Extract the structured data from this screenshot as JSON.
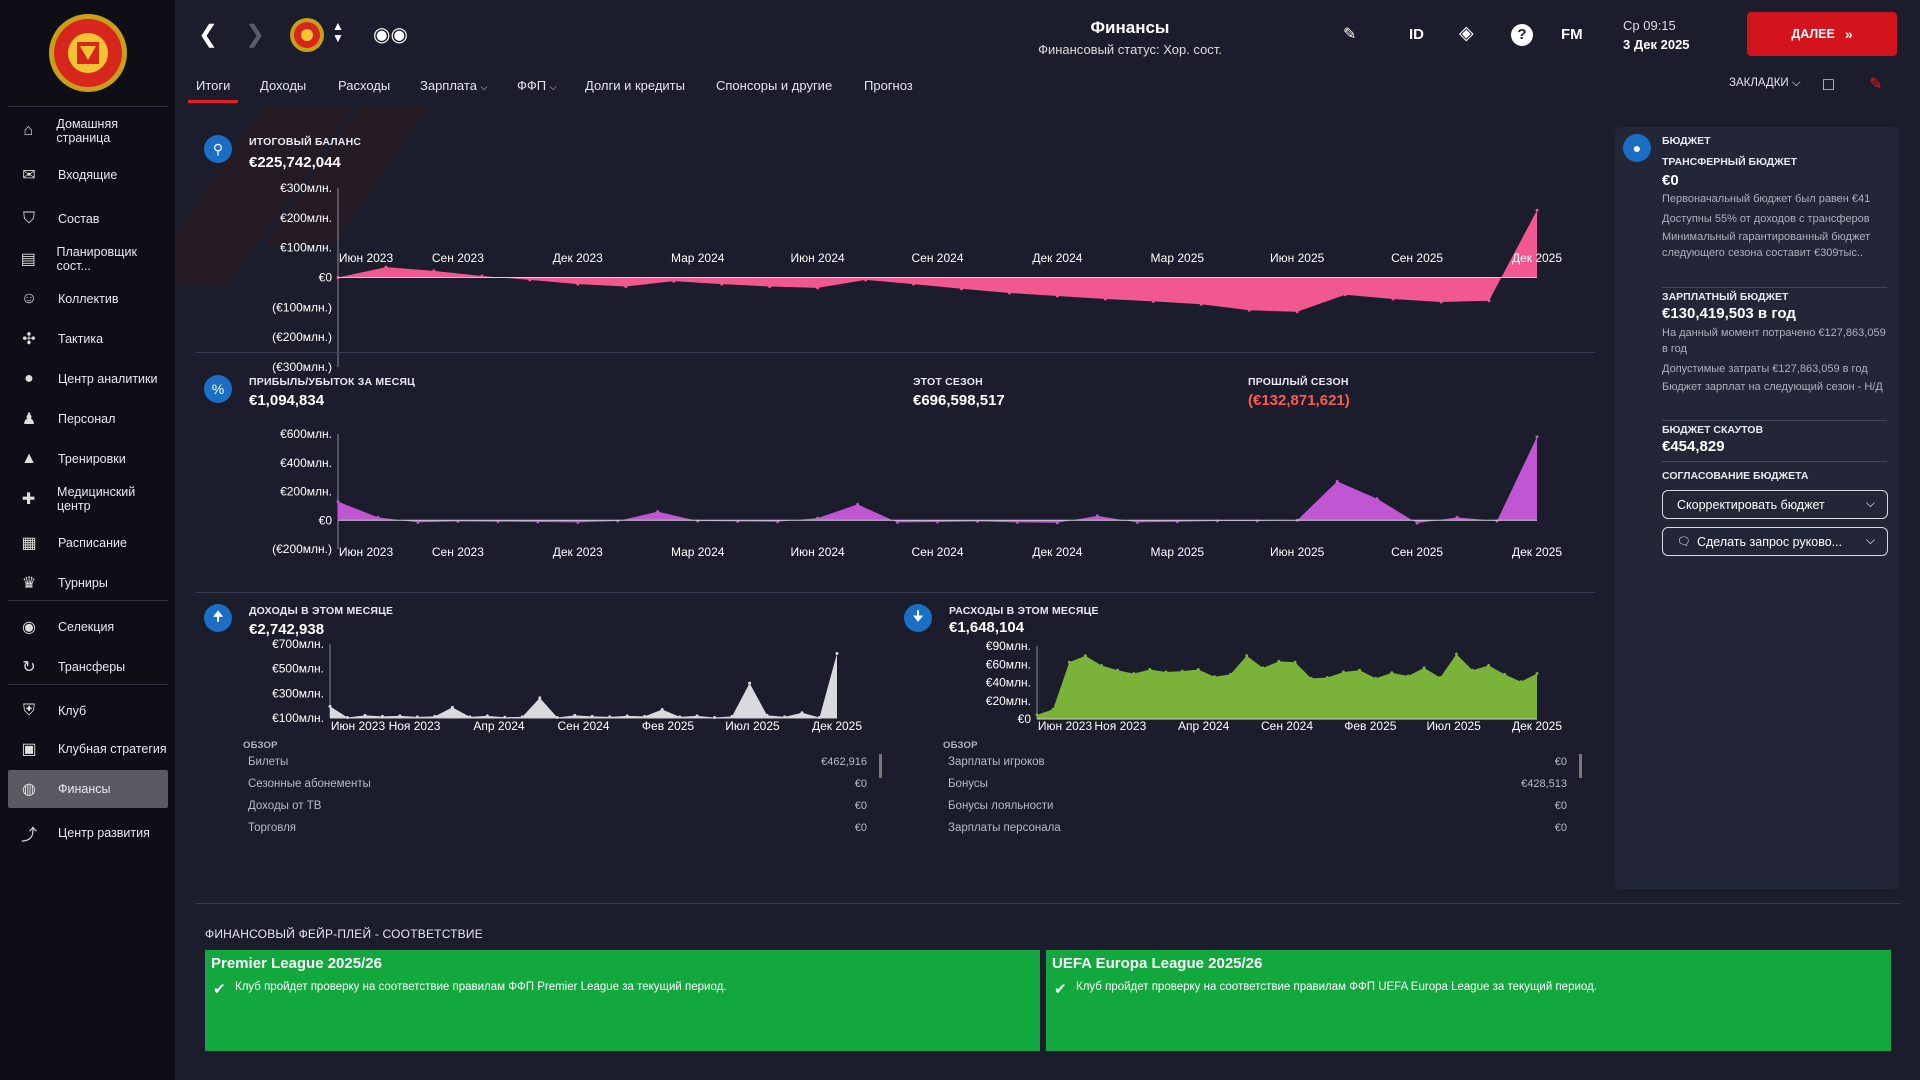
{
  "nav": {
    "items": [
      {
        "label": "Домашняя страница",
        "icon": "home-icon"
      },
      {
        "label": "Входящие",
        "icon": "mail-icon"
      },
      {
        "label": "Состав",
        "icon": "shirt-icon"
      },
      {
        "label": "Планировщик сост...",
        "icon": "planner-icon"
      },
      {
        "label": "Коллектив",
        "icon": "group-icon"
      },
      {
        "label": "Тактика",
        "icon": "tactics-icon"
      },
      {
        "label": "Центр аналитики",
        "icon": "analytics-icon"
      },
      {
        "label": "Персонал",
        "icon": "staff-icon"
      },
      {
        "label": "Тренировки",
        "icon": "training-cone-icon"
      },
      {
        "label": "Медицинский центр",
        "icon": "medical-icon"
      },
      {
        "label": "Расписание",
        "icon": "calendar-icon"
      },
      {
        "label": "Турниры",
        "icon": "trophy-icon"
      },
      {
        "label": "Селекция",
        "icon": "binoculars-icon"
      },
      {
        "label": "Трансферы",
        "icon": "transfer-icon"
      },
      {
        "label": "Клуб",
        "icon": "club-shield-icon"
      },
      {
        "label": "Клубная стратегия",
        "icon": "strategy-icon"
      },
      {
        "label": "Финансы",
        "icon": "finances-icon"
      },
      {
        "label": "Центр развития",
        "icon": "development-icon"
      }
    ]
  },
  "header": {
    "title": "Финансы",
    "subtitle": "Финансовый статус: Хор. сост.",
    "id_label": "ID",
    "fm_label": "FM",
    "time": "Ср 09:15",
    "date": "3 Дек 2025",
    "continue_label": "ДАЛЕЕ",
    "bookmarks_label": "ЗАКЛАДКИ"
  },
  "tabs": [
    "Итоги",
    "Доходы",
    "Расходы",
    "Зарплата",
    "ФФП",
    "Долги и кредиты",
    "Спонсоры и другие",
    "Прогноз"
  ],
  "balance": {
    "label": "ИТОГОВЫЙ БАЛАНС",
    "value": "€225,742,044"
  },
  "pnl": {
    "label": "ПРИБЫЛЬ/УБЫТОК ЗА МЕСЯЦ",
    "value": "€1,094,834",
    "this_season_label": "ЭТОТ СЕЗОН",
    "this_season_value": "€696,598,517",
    "last_season_label": "ПРОШЛЫЙ СЕЗОН",
    "last_season_value": "(€132,871,621)"
  },
  "income_month": {
    "label": "ДОХОДЫ В ЭТОМ МЕСЯЦЕ",
    "value": "€2,742,938"
  },
  "expense_month": {
    "label": "РАСХОДЫ В ЭТОМ МЕСЯЦЕ",
    "value": "€1,648,104"
  },
  "overview_income": {
    "title": "ОБЗОР",
    "rows": [
      {
        "label": "Билеты",
        "value": "€462,916"
      },
      {
        "label": "Сезонные абонементы",
        "value": "€0"
      },
      {
        "label": "Доходы от ТВ",
        "value": "€0"
      },
      {
        "label": "Торговля",
        "value": "€0"
      }
    ]
  },
  "overview_expense": {
    "title": "ОБЗОР",
    "rows": [
      {
        "label": "Зарплаты игроков",
        "value": "€0"
      },
      {
        "label": "Бонусы",
        "value": "€428,513"
      },
      {
        "label": "Бонусы лояльности",
        "value": "€0"
      },
      {
        "label": "Зарплаты персонала",
        "value": "€0"
      }
    ]
  },
  "budget": {
    "title": "БЮДЖЕТ",
    "transfer_label": "ТРАНСФЕРНЫЙ БЮДЖЕТ",
    "transfer_value": "€0",
    "transfer_note1": "Первоначальный бюджет был равен €41",
    "transfer_note2": "Доступны 55% от доходов с трансферов",
    "transfer_note3": "Минимальный гарантированный бюджет следующего сезона составит €309тыс..",
    "wage_label": "ЗАРПЛАТНЫЙ БЮДЖЕТ",
    "wage_value": "€130,419,503 в год",
    "wage_note1": "На данный момент потрачено €127,863,059 в год",
    "wage_note2": "Допустимые затраты €127,863,059 в год",
    "wage_note3": "Бюджет зарплат на следующий сезон - Н/Д",
    "scout_label": "БЮДЖЕТ СКАУТОВ",
    "scout_value": "€454,829",
    "agree_label": "СОГЛАСОВАНИЕ БЮДЖЕТА",
    "btn_adjust": "Скорректировать бюджет",
    "btn_request": "Сделать запрос руково..."
  },
  "ffp": {
    "title": "ФИНАНСОВЫЙ ФЕЙР-ПЛЕЙ - СООТВЕТСТВИЕ",
    "cards": [
      {
        "title": "Premier League 2025/26",
        "text": "Клуб пройдет проверку на соответствие правилам ФФП Premier League за текущий период."
      },
      {
        "title": "UEFA Europa League 2025/26",
        "text": "Клуб пройдет проверку на соответствие правилам ФФП UEFA Europa League за текущий период."
      }
    ]
  },
  "colors": {
    "balance": "#f0588f",
    "pnl": "#c156d3",
    "income": "#d9d9de",
    "expense": "#7ab23a",
    "continue": "#d4141c",
    "ffp": "#12a83e",
    "negative": "#ff5a50"
  },
  "chart_data": [
    {
      "type": "area",
      "name": "balance",
      "x_ticks": [
        "Июн 2023",
        "Сен 2023",
        "Дек 2023",
        "Мар 2024",
        "Июн 2024",
        "Сен 2024",
        "Дек 2024",
        "Мар 2025",
        "Июн 2025",
        "Сен 2025",
        "Дек 2025"
      ],
      "y_ticks": [
        "€300млн.",
        "€200млн.",
        "€100млн.",
        "€0",
        "(€100млн.)",
        "(€200млн.)",
        "(€300млн.)"
      ],
      "ylim": [
        -300,
        300
      ],
      "values": [
        0,
        35,
        22,
        5,
        -8,
        -22,
        -30,
        -12,
        -22,
        -30,
        -35,
        -8,
        -22,
        -38,
        -52,
        -62,
        -72,
        -80,
        -90,
        -110,
        -115,
        -58,
        -72,
        -82,
        -78,
        225.7
      ]
    },
    {
      "type": "area",
      "name": "pnl",
      "x_ticks": [
        "Июн 2023",
        "Сен 2023",
        "Дек 2023",
        "Мар 2024",
        "Июн 2024",
        "Сен 2024",
        "Дек 2024",
        "Мар 2025",
        "Июн 2025",
        "Сен 2025",
        "Дек 2025"
      ],
      "y_ticks": [
        "€600млн.",
        "€400млн.",
        "€200млн.",
        "€0",
        "(€200млн.)"
      ],
      "ylim": [
        -200,
        600
      ],
      "values": [
        130,
        20,
        -15,
        -8,
        -10,
        -12,
        -15,
        -5,
        60,
        -5,
        -8,
        -10,
        15,
        110,
        -15,
        -12,
        -8,
        -15,
        -18,
        30,
        -15,
        -10,
        -5,
        -5,
        0,
        270,
        150,
        -20,
        20,
        -5,
        580
      ]
    },
    {
      "type": "area",
      "name": "income",
      "x_ticks": [
        "Июн 2023",
        "Ноя 2023",
        "Апр 2024",
        "Сен 2024",
        "Фев 2025",
        "Июл 2025",
        "Дек 2025"
      ],
      "y_ticks": [
        "€700млн.",
        "€500млн.",
        "€300млн.",
        "€100млн."
      ],
      "ylim": [
        0,
        700
      ],
      "values": [
        110,
        5,
        25,
        15,
        20,
        10,
        15,
        100,
        10,
        20,
        8,
        10,
        190,
        5,
        25,
        15,
        10,
        20,
        15,
        80,
        10,
        20,
        5,
        15,
        330,
        25,
        10,
        50,
        5,
        610
      ]
    },
    {
      "type": "area",
      "name": "expense",
      "x_ticks": [
        "Июн 2023",
        "Ноя 2023",
        "Апр 2024",
        "Сен 2024",
        "Фев 2025",
        "Июл 2025",
        "Дек 2025"
      ],
      "y_ticks": [
        "€90млн.",
        "€60млн.",
        "€40млн.",
        "€20млн.",
        "€0"
      ],
      "ylim": [
        0,
        90
      ],
      "values": [
        5,
        12,
        70,
        78,
        66,
        60,
        56,
        61,
        58,
        59,
        61,
        52,
        55,
        78,
        63,
        71,
        70,
        50,
        51,
        58,
        60,
        50,
        57,
        53,
        63,
        51,
        80,
        60,
        66,
        55,
        46,
        56
      ]
    }
  ]
}
